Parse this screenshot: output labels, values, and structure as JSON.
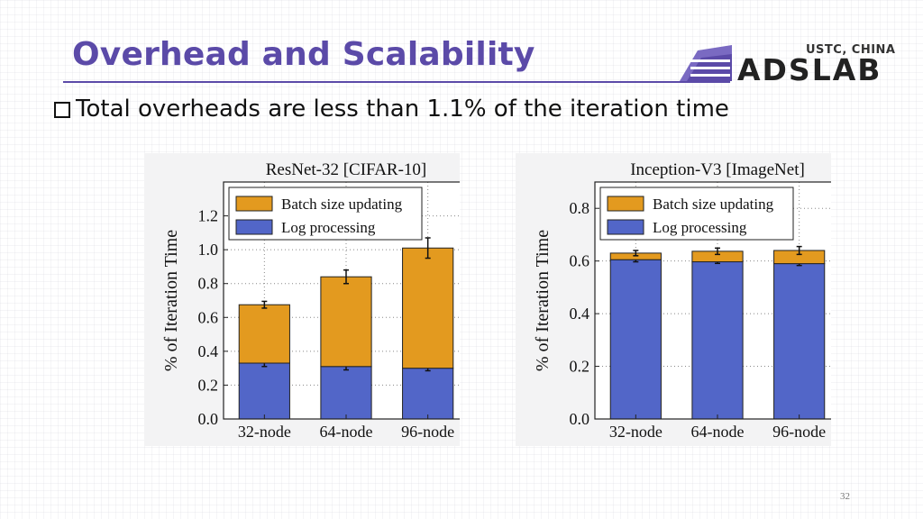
{
  "slide": {
    "title": "Overhead and Scalability",
    "bullet": "Total overheads are less than 1.1% of the iteration time",
    "page_number": "32"
  },
  "logo": {
    "sub": "USTC, CHINA",
    "main": "ADSLAB"
  },
  "colors": {
    "title": "#5b4aa8",
    "batch_size_updating": "#e39a1f",
    "log_processing": "#5266c8"
  },
  "chart_data": [
    {
      "type": "bar",
      "stacked": true,
      "title": "ResNet-32 [CIFAR-10]",
      "ylabel": "% of Iteration Time",
      "xlabel": "",
      "categories": [
        "32-node",
        "64-node",
        "96-node"
      ],
      "ylim": [
        0,
        1.4
      ],
      "yticks": [
        "0.0",
        "0.2",
        "0.4",
        "0.6",
        "0.8",
        "1.0",
        "1.2"
      ],
      "grid": true,
      "legend_position": "top-left",
      "series": [
        {
          "name": "Log processing",
          "values": [
            0.33,
            0.31,
            0.3
          ],
          "errors": [
            0.02,
            0.02,
            0.015
          ]
        },
        {
          "name": "Batch size updating",
          "values": [
            0.345,
            0.53,
            0.71
          ],
          "errors": [
            0.02,
            0.04,
            0.06
          ]
        }
      ]
    },
    {
      "type": "bar",
      "stacked": true,
      "title": "Inception-V3 [ImageNet]",
      "ylabel": "% of Iteration Time",
      "xlabel": "",
      "categories": [
        "32-node",
        "64-node",
        "96-node"
      ],
      "ylim": [
        0,
        0.9
      ],
      "yticks": [
        "0.0",
        "0.2",
        "0.4",
        "0.6",
        "0.8"
      ],
      "grid": true,
      "legend_position": "top-left",
      "series": [
        {
          "name": "Log processing",
          "values": [
            0.605,
            0.597,
            0.59
          ],
          "errors": [
            0.008,
            0.006,
            0.007
          ]
        },
        {
          "name": "Batch size updating",
          "values": [
            0.025,
            0.04,
            0.05
          ],
          "errors": [
            0.01,
            0.012,
            0.015
          ]
        }
      ]
    }
  ]
}
